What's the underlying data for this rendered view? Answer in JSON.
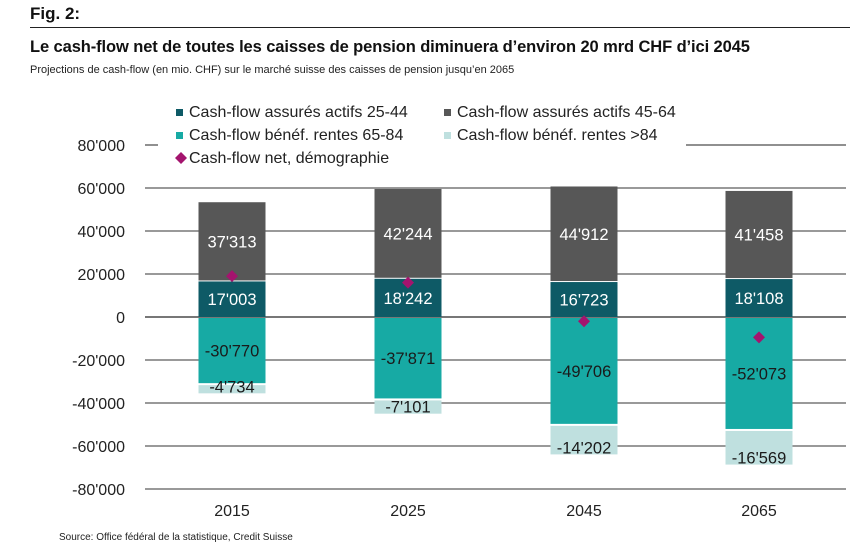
{
  "header": {
    "fig_label": "Fig. 2:",
    "title": "Le cash-flow net de toutes les caisses de pension diminuera d’environ 20 mrd CHF d’ici 2045",
    "subtitle": "Projections de cash-flow (en mio. CHF) sur le marché suisse des caisses de pension jusqu’en 2065"
  },
  "footer": {
    "source": "Source: Office fédéral de la statistique, Credit Suisse"
  },
  "chart_data": {
    "type": "bar",
    "stacked": true,
    "title": "Le cash-flow net de toutes les caisses de pension diminuera d’environ 20 mrd CHF d’ici 2045",
    "xlabel": "",
    "ylabel": "",
    "categories": [
      "2015",
      "2025",
      "2045",
      "2065"
    ],
    "ylim": [
      -80000,
      80000
    ],
    "yticks": [
      80000,
      60000,
      40000,
      20000,
      0,
      -20000,
      -40000,
      -60000,
      -80000
    ],
    "ytick_labels": [
      "80'000",
      "60'000",
      "40'000",
      "20'000",
      "0",
      "-20'000",
      "-40'000",
      "-60'000",
      "-80'000"
    ],
    "grid": true,
    "legend_position": "top",
    "series": [
      {
        "name": "Cash-flow assurés actifs 25-44",
        "color": "#0e5a66",
        "label_color": "#ffffff",
        "values": [
          17003,
          18242,
          16723,
          18108
        ],
        "labels": [
          "17'003",
          "18'242",
          "16'723",
          "18'108"
        ]
      },
      {
        "name": "Cash-flow assurés actifs 45-64",
        "color": "#575757",
        "label_color": "#ffffff",
        "values": [
          37313,
          42244,
          44912,
          41458
        ],
        "labels": [
          "37'313",
          "42'244",
          "44'912",
          "41'458"
        ]
      },
      {
        "name": "Cash-flow bénéf. rentes 65-84",
        "color": "#17aaa4",
        "label_color": "#1a1a1a",
        "values": [
          -30770,
          -37871,
          -49706,
          -52073
        ],
        "labels": [
          "-30'770",
          "-37'871",
          "-49'706",
          "-52'073"
        ]
      },
      {
        "name": "Cash-flow bénéf. rentes >84",
        "color": "#bfe0df",
        "label_color": "#1a1a1a",
        "values": [
          -4734,
          -7101,
          -14202,
          -16569
        ],
        "labels": [
          "-4'734",
          "-7'101",
          "-14'202",
          "-16'569"
        ]
      }
    ],
    "net_series": {
      "name": "Cash-flow net, démographie",
      "color": "#a4146e",
      "type": "scatter",
      "marker": "diamond",
      "values": [
        19000,
        16000,
        -2000,
        -9500
      ]
    }
  }
}
